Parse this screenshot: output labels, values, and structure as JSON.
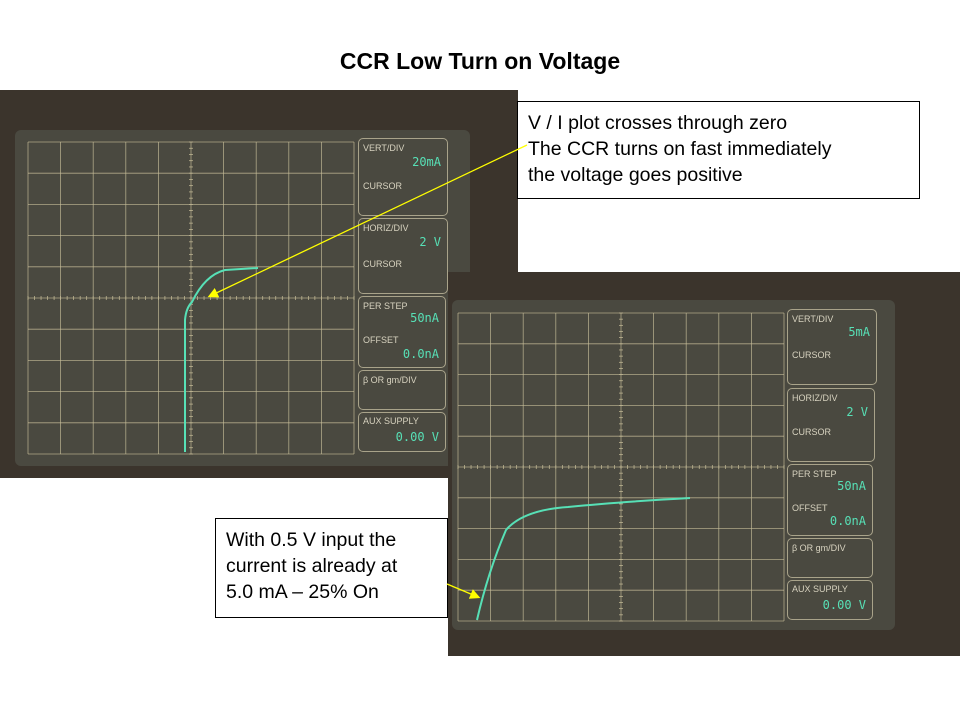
{
  "title": "CCR Low Turn on Voltage",
  "photos": [
    {
      "vert_div_label": "VERT/DIV",
      "vert_div": "20mA",
      "cursor1": "CURSOR",
      "horiz_div_label": "HORIZ/DIV",
      "horiz_div": "2 V",
      "cursor2": "CURSOR",
      "per_step_label": "PER STEP",
      "per_step": "50nA",
      "offset_label": "OFFSET",
      "offset": "0.0nA",
      "beta_label": "β OR gm/DIV",
      "aux_label": "AUX SUPPLY",
      "aux": "0.00 V"
    },
    {
      "vert_div_label": "VERT/DIV",
      "vert_div": "5mA",
      "cursor1": "CURSOR",
      "horiz_div_label": "HORIZ/DIV",
      "horiz_div": "2 V",
      "cursor2": "CURSOR",
      "per_step_label": "PER STEP",
      "per_step": "50nA",
      "offset_label": "OFFSET",
      "offset": "0.0nA",
      "beta_label": "β OR gm/DIV",
      "aux_label": "AUX SUPPLY",
      "aux": "0.00 V"
    }
  ],
  "callouts": [
    {
      "lines": [
        "V / I plot crosses through zero",
        "The CCR turns on fast immediately",
        "the voltage goes positive"
      ]
    },
    {
      "lines": [
        "With 0.5 V input the",
        "current is already at",
        "5.0 mA – 25% On"
      ]
    }
  ],
  "colors": {
    "trace": "#57e0b6",
    "arrow": "#ffff00",
    "grid": "#c9bf9a",
    "screen": "#4a4940"
  }
}
